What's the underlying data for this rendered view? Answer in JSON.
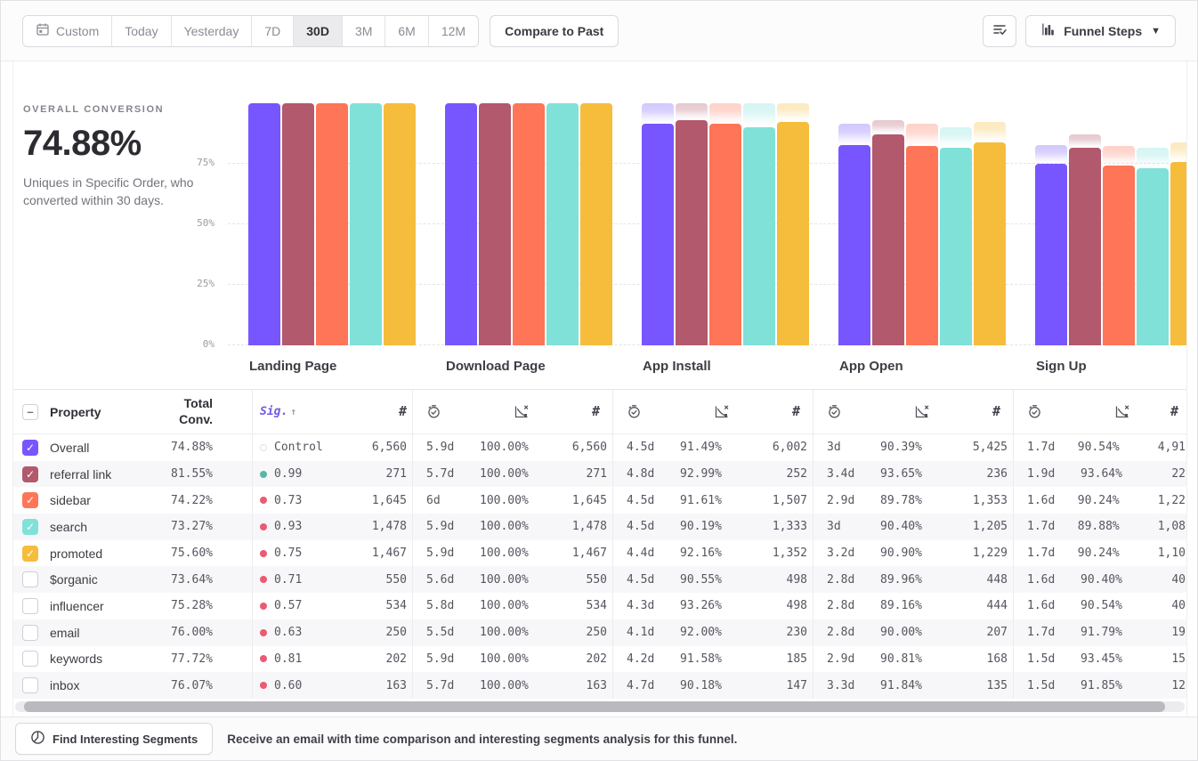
{
  "toolbar": {
    "date_ranges": [
      "Custom",
      "Today",
      "Yesterday",
      "7D",
      "30D",
      "3M",
      "6M",
      "12M"
    ],
    "active_range": "30D",
    "compare_button": "Compare to Past",
    "view_selector": "Funnel Steps"
  },
  "summary": {
    "label": "OVERALL CONVERSION",
    "value": "74.88%",
    "description": "Uniques in Specific Order, who converted within 30 days."
  },
  "chart_data": {
    "type": "bar",
    "categories": [
      "Landing Page",
      "Download Page",
      "App Install",
      "App Open",
      "Sign Up"
    ],
    "ytick_labels": [
      "75%",
      "50%",
      "25%",
      "0%"
    ],
    "ylim": [
      0,
      100
    ],
    "grid": "horizontal-dashed",
    "legend_position": "table-below",
    "series": [
      {
        "name": "Overall",
        "color": "#7856FF",
        "values": [
          100,
          100,
          91.49,
          82.7,
          74.88
        ]
      },
      {
        "name": "referral link",
        "color": "#B2596E",
        "values": [
          100,
          100,
          92.99,
          87.08,
          81.55
        ]
      },
      {
        "name": "sidebar",
        "color": "#FF7557",
        "values": [
          100,
          100,
          91.61,
          82.25,
          74.22
        ]
      },
      {
        "name": "search",
        "color": "#80E1D9",
        "values": [
          100,
          100,
          90.19,
          81.53,
          73.27
        ]
      },
      {
        "name": "promoted",
        "color": "#F6BC3C",
        "values": [
          100,
          100,
          92.16,
          83.77,
          75.6
        ]
      }
    ]
  },
  "table": {
    "headers": {
      "property": "Property",
      "total_conv_line1": "Total",
      "total_conv_line2": "Conv.",
      "sig": "Sig.",
      "sort_arrow": "↑",
      "count_symbol": "#"
    },
    "sig_dot_colors": {
      "significant": "#53B8A8",
      "not_significant": "#EC5A72"
    },
    "rows": [
      {
        "property": "Overall",
        "checked": true,
        "color": "#7856FF",
        "total_conv": "74.88%",
        "sig": "Control",
        "dot": "control",
        "steps": [
          {
            "count": "6,560"
          },
          {
            "time": "5.9d",
            "rate": "100.00%",
            "count": "6,560"
          },
          {
            "time": "4.5d",
            "rate": "91.49%",
            "count": "6,002"
          },
          {
            "time": "3d",
            "rate": "90.39%",
            "count": "5,425"
          },
          {
            "time": "1.7d",
            "rate": "90.54%",
            "count": "4,91"
          }
        ]
      },
      {
        "property": "referral link",
        "checked": true,
        "color": "#B2596E",
        "total_conv": "81.55%",
        "sig": "0.99",
        "dot": "significant",
        "steps": [
          {
            "count": "271"
          },
          {
            "time": "5.7d",
            "rate": "100.00%",
            "count": "271"
          },
          {
            "time": "4.8d",
            "rate": "92.99%",
            "count": "252"
          },
          {
            "time": "3.4d",
            "rate": "93.65%",
            "count": "236"
          },
          {
            "time": "1.9d",
            "rate": "93.64%",
            "count": "22"
          }
        ]
      },
      {
        "property": "sidebar",
        "checked": true,
        "color": "#FF7557",
        "total_conv": "74.22%",
        "sig": "0.73",
        "dot": "not_significant",
        "steps": [
          {
            "count": "1,645"
          },
          {
            "time": "6d",
            "rate": "100.00%",
            "count": "1,645"
          },
          {
            "time": "4.5d",
            "rate": "91.61%",
            "count": "1,507"
          },
          {
            "time": "2.9d",
            "rate": "89.78%",
            "count": "1,353"
          },
          {
            "time": "1.6d",
            "rate": "90.24%",
            "count": "1,22"
          }
        ]
      },
      {
        "property": "search",
        "checked": true,
        "color": "#80E1D9",
        "total_conv": "73.27%",
        "sig": "0.93",
        "dot": "not_significant",
        "steps": [
          {
            "count": "1,478"
          },
          {
            "time": "5.9d",
            "rate": "100.00%",
            "count": "1,478"
          },
          {
            "time": "4.5d",
            "rate": "90.19%",
            "count": "1,333"
          },
          {
            "time": "3d",
            "rate": "90.40%",
            "count": "1,205"
          },
          {
            "time": "1.7d",
            "rate": "89.88%",
            "count": "1,08"
          }
        ]
      },
      {
        "property": "promoted",
        "checked": true,
        "color": "#F6BC3C",
        "total_conv": "75.60%",
        "sig": "0.75",
        "dot": "not_significant",
        "steps": [
          {
            "count": "1,467"
          },
          {
            "time": "5.9d",
            "rate": "100.00%",
            "count": "1,467"
          },
          {
            "time": "4.4d",
            "rate": "92.16%",
            "count": "1,352"
          },
          {
            "time": "3.2d",
            "rate": "90.90%",
            "count": "1,229"
          },
          {
            "time": "1.7d",
            "rate": "90.24%",
            "count": "1,10"
          }
        ]
      },
      {
        "property": "$organic",
        "checked": false,
        "color": "",
        "total_conv": "73.64%",
        "sig": "0.71",
        "dot": "not_significant",
        "steps": [
          {
            "count": "550"
          },
          {
            "time": "5.6d",
            "rate": "100.00%",
            "count": "550"
          },
          {
            "time": "4.5d",
            "rate": "90.55%",
            "count": "498"
          },
          {
            "time": "2.8d",
            "rate": "89.96%",
            "count": "448"
          },
          {
            "time": "1.6d",
            "rate": "90.40%",
            "count": "40"
          }
        ]
      },
      {
        "property": "influencer",
        "checked": false,
        "color": "",
        "total_conv": "75.28%",
        "sig": "0.57",
        "dot": "not_significant",
        "steps": [
          {
            "count": "534"
          },
          {
            "time": "5.8d",
            "rate": "100.00%",
            "count": "534"
          },
          {
            "time": "4.3d",
            "rate": "93.26%",
            "count": "498"
          },
          {
            "time": "2.8d",
            "rate": "89.16%",
            "count": "444"
          },
          {
            "time": "1.6d",
            "rate": "90.54%",
            "count": "40"
          }
        ]
      },
      {
        "property": "email",
        "checked": false,
        "color": "",
        "total_conv": "76.00%",
        "sig": "0.63",
        "dot": "not_significant",
        "steps": [
          {
            "count": "250"
          },
          {
            "time": "5.5d",
            "rate": "100.00%",
            "count": "250"
          },
          {
            "time": "4.1d",
            "rate": "92.00%",
            "count": "230"
          },
          {
            "time": "2.8d",
            "rate": "90.00%",
            "count": "207"
          },
          {
            "time": "1.7d",
            "rate": "91.79%",
            "count": "19"
          }
        ]
      },
      {
        "property": "keywords",
        "checked": false,
        "color": "",
        "total_conv": "77.72%",
        "sig": "0.81",
        "dot": "not_significant",
        "steps": [
          {
            "count": "202"
          },
          {
            "time": "5.9d",
            "rate": "100.00%",
            "count": "202"
          },
          {
            "time": "4.2d",
            "rate": "91.58%",
            "count": "185"
          },
          {
            "time": "2.9d",
            "rate": "90.81%",
            "count": "168"
          },
          {
            "time": "1.5d",
            "rate": "93.45%",
            "count": "15"
          }
        ]
      },
      {
        "property": "inbox",
        "checked": false,
        "color": "",
        "total_conv": "76.07%",
        "sig": "0.60",
        "dot": "not_significant",
        "steps": [
          {
            "count": "163"
          },
          {
            "time": "5.7d",
            "rate": "100.00%",
            "count": "163"
          },
          {
            "time": "4.7d",
            "rate": "90.18%",
            "count": "147"
          },
          {
            "time": "3.3d",
            "rate": "91.84%",
            "count": "135"
          },
          {
            "time": "1.5d",
            "rate": "91.85%",
            "count": "12"
          }
        ]
      }
    ]
  },
  "footer": {
    "button": "Find Interesting Segments",
    "message": "Receive an email with time comparison and interesting segments analysis for this funnel."
  }
}
